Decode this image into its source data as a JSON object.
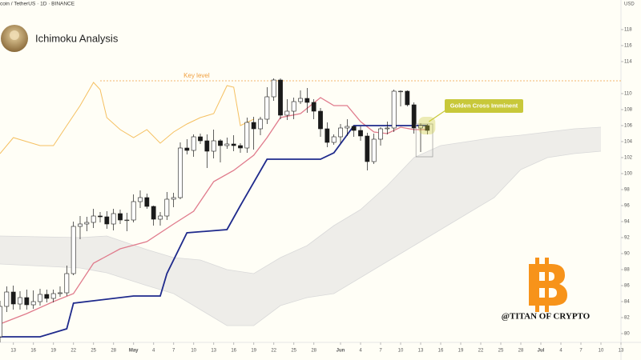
{
  "header": {
    "symbol": "coin / TetherUS · 1D · BINANCE",
    "title": "Ichimoku Analysis",
    "currency": "USD"
  },
  "chart_data": {
    "type": "candlestick",
    "xlim": [
      -2,
      91
    ],
    "ylim": [
      78.9,
      121.7
    ],
    "xticks": [
      {
        "value": 0,
        "label": "13"
      },
      {
        "value": 3,
        "label": "16"
      },
      {
        "value": 6,
        "label": "19"
      },
      {
        "value": 9,
        "label": "22"
      },
      {
        "value": 12,
        "label": "25"
      },
      {
        "value": 15,
        "label": "28"
      },
      {
        "value": 18,
        "label": "May"
      },
      {
        "value": 21,
        "label": "4"
      },
      {
        "value": 24,
        "label": "7"
      },
      {
        "value": 27,
        "label": "10"
      },
      {
        "value": 30,
        "label": "13"
      },
      {
        "value": 33,
        "label": "16"
      },
      {
        "value": 36,
        "label": "19"
      },
      {
        "value": 39,
        "label": "22"
      },
      {
        "value": 42,
        "label": "25"
      },
      {
        "value": 45,
        "label": "28"
      },
      {
        "value": 49,
        "label": "Jun"
      },
      {
        "value": 52,
        "label": "4"
      },
      {
        "value": 55,
        "label": "7"
      },
      {
        "value": 58,
        "label": "10"
      },
      {
        "value": 61,
        "label": "13"
      },
      {
        "value": 64,
        "label": "16"
      },
      {
        "value": 67,
        "label": "19"
      },
      {
        "value": 70,
        "label": "22"
      },
      {
        "value": 73,
        "label": "25"
      },
      {
        "value": 76,
        "label": "28"
      },
      {
        "value": 79,
        "label": "Jul"
      },
      {
        "value": 82,
        "label": "4"
      },
      {
        "value": 85,
        "label": "7"
      },
      {
        "value": 88,
        "label": "10"
      },
      {
        "value": 91,
        "label": "13"
      }
    ],
    "yticks": [
      80,
      82,
      84,
      86,
      88,
      90,
      92,
      94,
      96,
      98,
      100,
      102,
      104,
      106,
      108,
      110,
      114,
      116,
      118
    ],
    "candles": {
      "up_color": "#ffffff",
      "down_color": "#1a1a1a",
      "x": [
        -2,
        -1,
        0,
        1,
        2,
        3,
        4,
        5,
        6,
        7,
        8,
        9,
        10,
        11,
        12,
        13,
        14,
        15,
        16,
        17,
        18,
        19,
        20,
        21,
        22,
        23,
        24,
        25,
        26,
        27,
        28,
        29,
        30,
        31,
        32,
        33,
        34,
        35,
        36,
        37,
        38,
        39,
        40,
        41,
        42,
        43,
        44,
        45,
        46,
        47,
        48,
        49,
        50,
        51,
        52,
        53,
        54,
        55,
        56,
        57,
        58,
        59,
        60,
        61,
        62
      ],
      "open": [
        79.6,
        83.4,
        85.2,
        83.7,
        84.5,
        83.6,
        84.0,
        84.9,
        84.4,
        85.0,
        85.1,
        87.5,
        93.4,
        93.7,
        93.9,
        94.7,
        94.6,
        93.7,
        95.0,
        94.2,
        94.2,
        96.5,
        97.0,
        95.9,
        94.3,
        94.7,
        96.8,
        97.0,
        103.2,
        102.9,
        104.6,
        104.1,
        102.8,
        104.1,
        103.5,
        103.7,
        103.5,
        103.2,
        106.4,
        105.6,
        106.8,
        109.6,
        111.7,
        107.3,
        107.8,
        109.0,
        109.4,
        108.9,
        107.8,
        105.6,
        103.9,
        104.6,
        105.7,
        105.9,
        105.4,
        104.7,
        101.5,
        104.3,
        105.6,
        105.7,
        110.3,
        110.3,
        108.6,
        105.7,
        106.0
      ],
      "high": [
        84.1,
        85.9,
        86.0,
        85.3,
        85.5,
        85.4,
        85.6,
        85.5,
        85.5,
        85.9,
        88.5,
        94.0,
        94.7,
        94.6,
        95.6,
        95.2,
        95.3,
        95.6,
        95.5,
        95.1,
        97.4,
        97.9,
        97.5,
        96.0,
        95.2,
        97.7,
        97.6,
        103.9,
        104.3,
        104.9,
        105.0,
        104.9,
        105.5,
        104.3,
        104.5,
        104.8,
        103.8,
        107.0,
        107.1,
        107.1,
        110.8,
        111.9,
        111.9,
        109.3,
        109.5,
        110.4,
        110.7,
        109.3,
        108.2,
        106.4,
        104.9,
        106.2,
        106.8,
        106.0,
        105.9,
        105.1,
        105.0,
        105.8,
        106.5,
        110.5,
        110.4,
        110.4,
        108.9,
        106.3,
        106.2
      ],
      "low": [
        78.9,
        82.7,
        83.0,
        83.0,
        83.0,
        83.1,
        83.5,
        83.9,
        83.9,
        84.6,
        84.7,
        87.3,
        91.8,
        92.8,
        93.2,
        93.9,
        93.1,
        92.9,
        93.7,
        92.8,
        93.9,
        95.7,
        95.6,
        93.5,
        93.5,
        94.2,
        95.8,
        96.8,
        102.4,
        102.1,
        103.7,
        100.7,
        101.9,
        101.4,
        103.1,
        102.8,
        102.6,
        102.6,
        103.0,
        104.8,
        106.2,
        109.1,
        106.8,
        106.7,
        106.8,
        108.7,
        107.6,
        106.8,
        104.6,
        103.3,
        103.6,
        103.8,
        104.7,
        104.6,
        104.1,
        100.4,
        101.2,
        103.5,
        104.9,
        105.2,
        108.4,
        108.4,
        105.0,
        102.7,
        104.9
      ],
      "close": [
        83.4,
        85.2,
        83.7,
        84.5,
        83.6,
        84.0,
        84.9,
        84.4,
        85.0,
        85.1,
        87.5,
        93.4,
        93.7,
        93.9,
        94.7,
        94.6,
        93.7,
        95.0,
        94.2,
        94.2,
        96.5,
        97.0,
        95.9,
        94.3,
        94.7,
        96.8,
        97.0,
        103.2,
        102.9,
        104.6,
        104.1,
        102.8,
        104.1,
        103.5,
        103.7,
        103.5,
        103.2,
        106.4,
        105.6,
        106.8,
        109.6,
        111.7,
        107.3,
        107.8,
        109.0,
        109.4,
        108.9,
        107.8,
        105.6,
        103.9,
        104.6,
        105.7,
        105.9,
        105.4,
        104.7,
        101.5,
        104.3,
        105.6,
        105.7,
        110.3,
        110.3,
        108.6,
        105.7,
        106.0,
        105.4
      ]
    },
    "cloud": {
      "color": "#d9d9d9",
      "x": [
        -2,
        10,
        14,
        20,
        24,
        28,
        32,
        36,
        40,
        44,
        48,
        52,
        56,
        60,
        64,
        68,
        72,
        76,
        80,
        84,
        88
      ],
      "span_a": [
        92.2,
        92.0,
        92.2,
        90.5,
        89.5,
        89.2,
        88.0,
        87.5,
        89.5,
        91.0,
        93.5,
        95.5,
        98.5,
        102.0,
        103.5,
        104.0,
        104.5,
        104.8,
        105.2,
        105.6,
        105.8
      ],
      "span_b": [
        88.7,
        88.2,
        87.6,
        86.0,
        85.0,
        83.0,
        81.0,
        81.0,
        83.5,
        84.5,
        85.0,
        87.0,
        89.0,
        91.0,
        93.0,
        95.0,
        97.0,
        100.5,
        102.0,
        102.5,
        102.8
      ]
    },
    "lines": [
      {
        "color": "#f5c061",
        "width": 1,
        "x": [
          -2,
          0,
          2,
          4,
          6,
          8,
          10,
          12,
          13,
          14,
          16,
          18,
          20,
          22,
          24,
          26,
          28,
          30,
          32,
          33,
          34,
          36
        ],
        "values": [
          102.5,
          104.5,
          104.0,
          103.5,
          103.5,
          106.0,
          108.5,
          111.4,
          110.5,
          107.0,
          105.5,
          104.5,
          105.5,
          103.8,
          105.2,
          106.2,
          107.0,
          107.5,
          111.0,
          110.8,
          106.0,
          106.8
        ]
      },
      {
        "color": "#e07b8c",
        "width": 1.3,
        "x": [
          -2,
          2,
          6,
          9,
          12,
          16,
          20,
          24,
          27,
          30,
          33,
          36,
          38,
          40,
          43,
          46,
          48,
          50,
          52,
          54,
          56,
          58,
          60,
          62
        ],
        "values": [
          81.2,
          82.5,
          84.0,
          85.0,
          88.8,
          90.6,
          91.5,
          93.7,
          95.3,
          99.0,
          100.4,
          102.3,
          104.5,
          107.0,
          107.5,
          109.5,
          108.5,
          108.5,
          106.5,
          105.2,
          105.0,
          105.8,
          105.5,
          105.5
        ]
      },
      {
        "color": "#1f2a8c",
        "width": 1.8,
        "x": [
          -2,
          4,
          8,
          9,
          18,
          22,
          23,
          26,
          32,
          34,
          38,
          46,
          48,
          51,
          62
        ],
        "values": [
          79.6,
          79.6,
          80.6,
          83.8,
          84.7,
          84.7,
          87.5,
          92.6,
          93.0,
          96.0,
          101.8,
          101.8,
          102.6,
          106.0,
          106.0
        ]
      }
    ],
    "key_level": {
      "label": "Key level",
      "value": 111.6,
      "color": "#f0a040"
    },
    "callout": {
      "text": "Golden Cross Imminent",
      "color": "#c8c83a"
    },
    "watermark": "@TITAN OF CRYPTO"
  }
}
